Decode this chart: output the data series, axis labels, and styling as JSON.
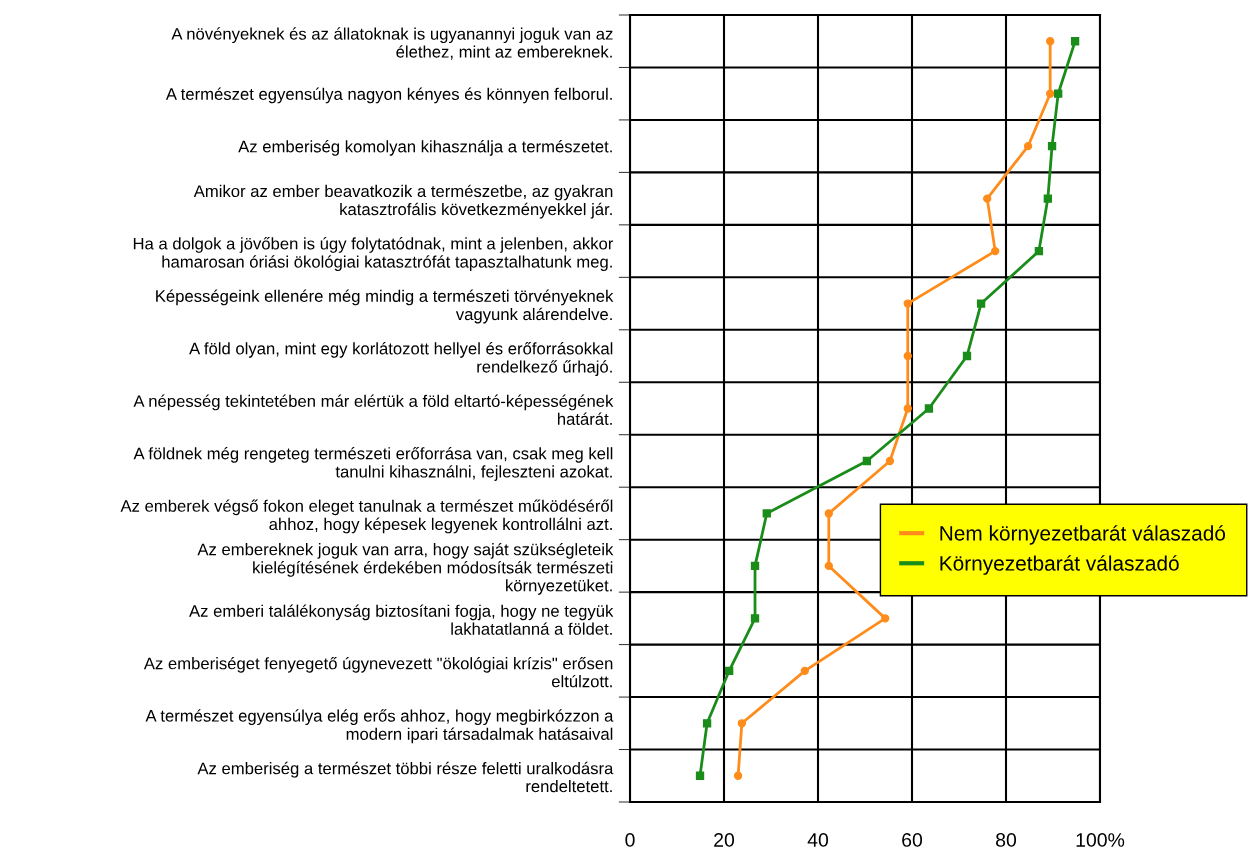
{
  "chart_data": {
    "type": "line",
    "orientation": "horizontal",
    "categories": [
      "A növényeknek és az állatoknak is ugyanannyi joguk van az\nélethez, mint az embereknek.",
      "A természet egyensúlya nagyon kényes és könnyen felborul.",
      "Az emberiség komolyan kihasználja a természetet.",
      "Amikor az ember beavatkozik a természetbe, az gyakran\nkatasztrofális következményekkel jár.",
      "Ha a dolgok a jövőben is úgy folytatódnak, mint a jelenben, akkor\nhamarosan óriási ökológiai katasztrófát tapasztalhatunk meg.",
      "Képességeink ellenére még mindig a természeti törvényeknek\nvagyunk alárendelve.",
      "A föld olyan, mint egy korlátozott hellyel és erőforrásokkal\nrendelkező űrhajó.",
      "A népesség tekintetében már elértük a föld eltartó-képességének\nhatárát.",
      "A földnek még rengeteg természeti erőforrása van, csak meg kell\ntanulni kihasználni, fejleszteni azokat.",
      "Az emberek végső fokon eleget tanulnak a természet működéséről\nahhoz, hogy képesek legyenek kontrollálni azt.",
      "Az embereknek joguk van arra, hogy saját szükségleteik\nkielégítésének érdekében módosítsák természeti\nkörnyezetüket.",
      "Az emberi találékonyság biztosítani fogja, hogy ne tegyük\nlakhatatlanná a földet.",
      "Az emberiséget fenyegető úgynevezett \"ökológiai krízis\" erősen\neltúlzott.",
      "A természet egyensúlya elég erős ahhoz, hogy megbirkózzon a\nmodern ipari társadalmak hatásaival",
      "Az emberiség a természet többi része feletti uralkodásra\nrendeltetett."
    ],
    "series": [
      {
        "name": "Nem környezetbarát válaszadó",
        "color": "#ff8c1a",
        "marker": "circle",
        "values": [
          89.4,
          89.4,
          84.7,
          76.0,
          77.7,
          59.1,
          59.1,
          59.1,
          55.3,
          42.3,
          42.3,
          54.3,
          37.2,
          23.8,
          23.0
        ]
      },
      {
        "name": "Környezetbarát válaszadó",
        "color": "#1a8c1a",
        "marker": "square",
        "values": [
          94.7,
          91.1,
          89.8,
          88.9,
          87.0,
          74.7,
          71.7,
          63.6,
          50.4,
          29.1,
          26.6,
          26.6,
          21.1,
          16.4,
          14.9
        ]
      }
    ],
    "xlim": [
      0,
      100
    ],
    "xticks": [
      0,
      20,
      40,
      60,
      80,
      {
        "value": 100,
        "label": "100%"
      }
    ],
    "grid": true,
    "legend": "right"
  }
}
